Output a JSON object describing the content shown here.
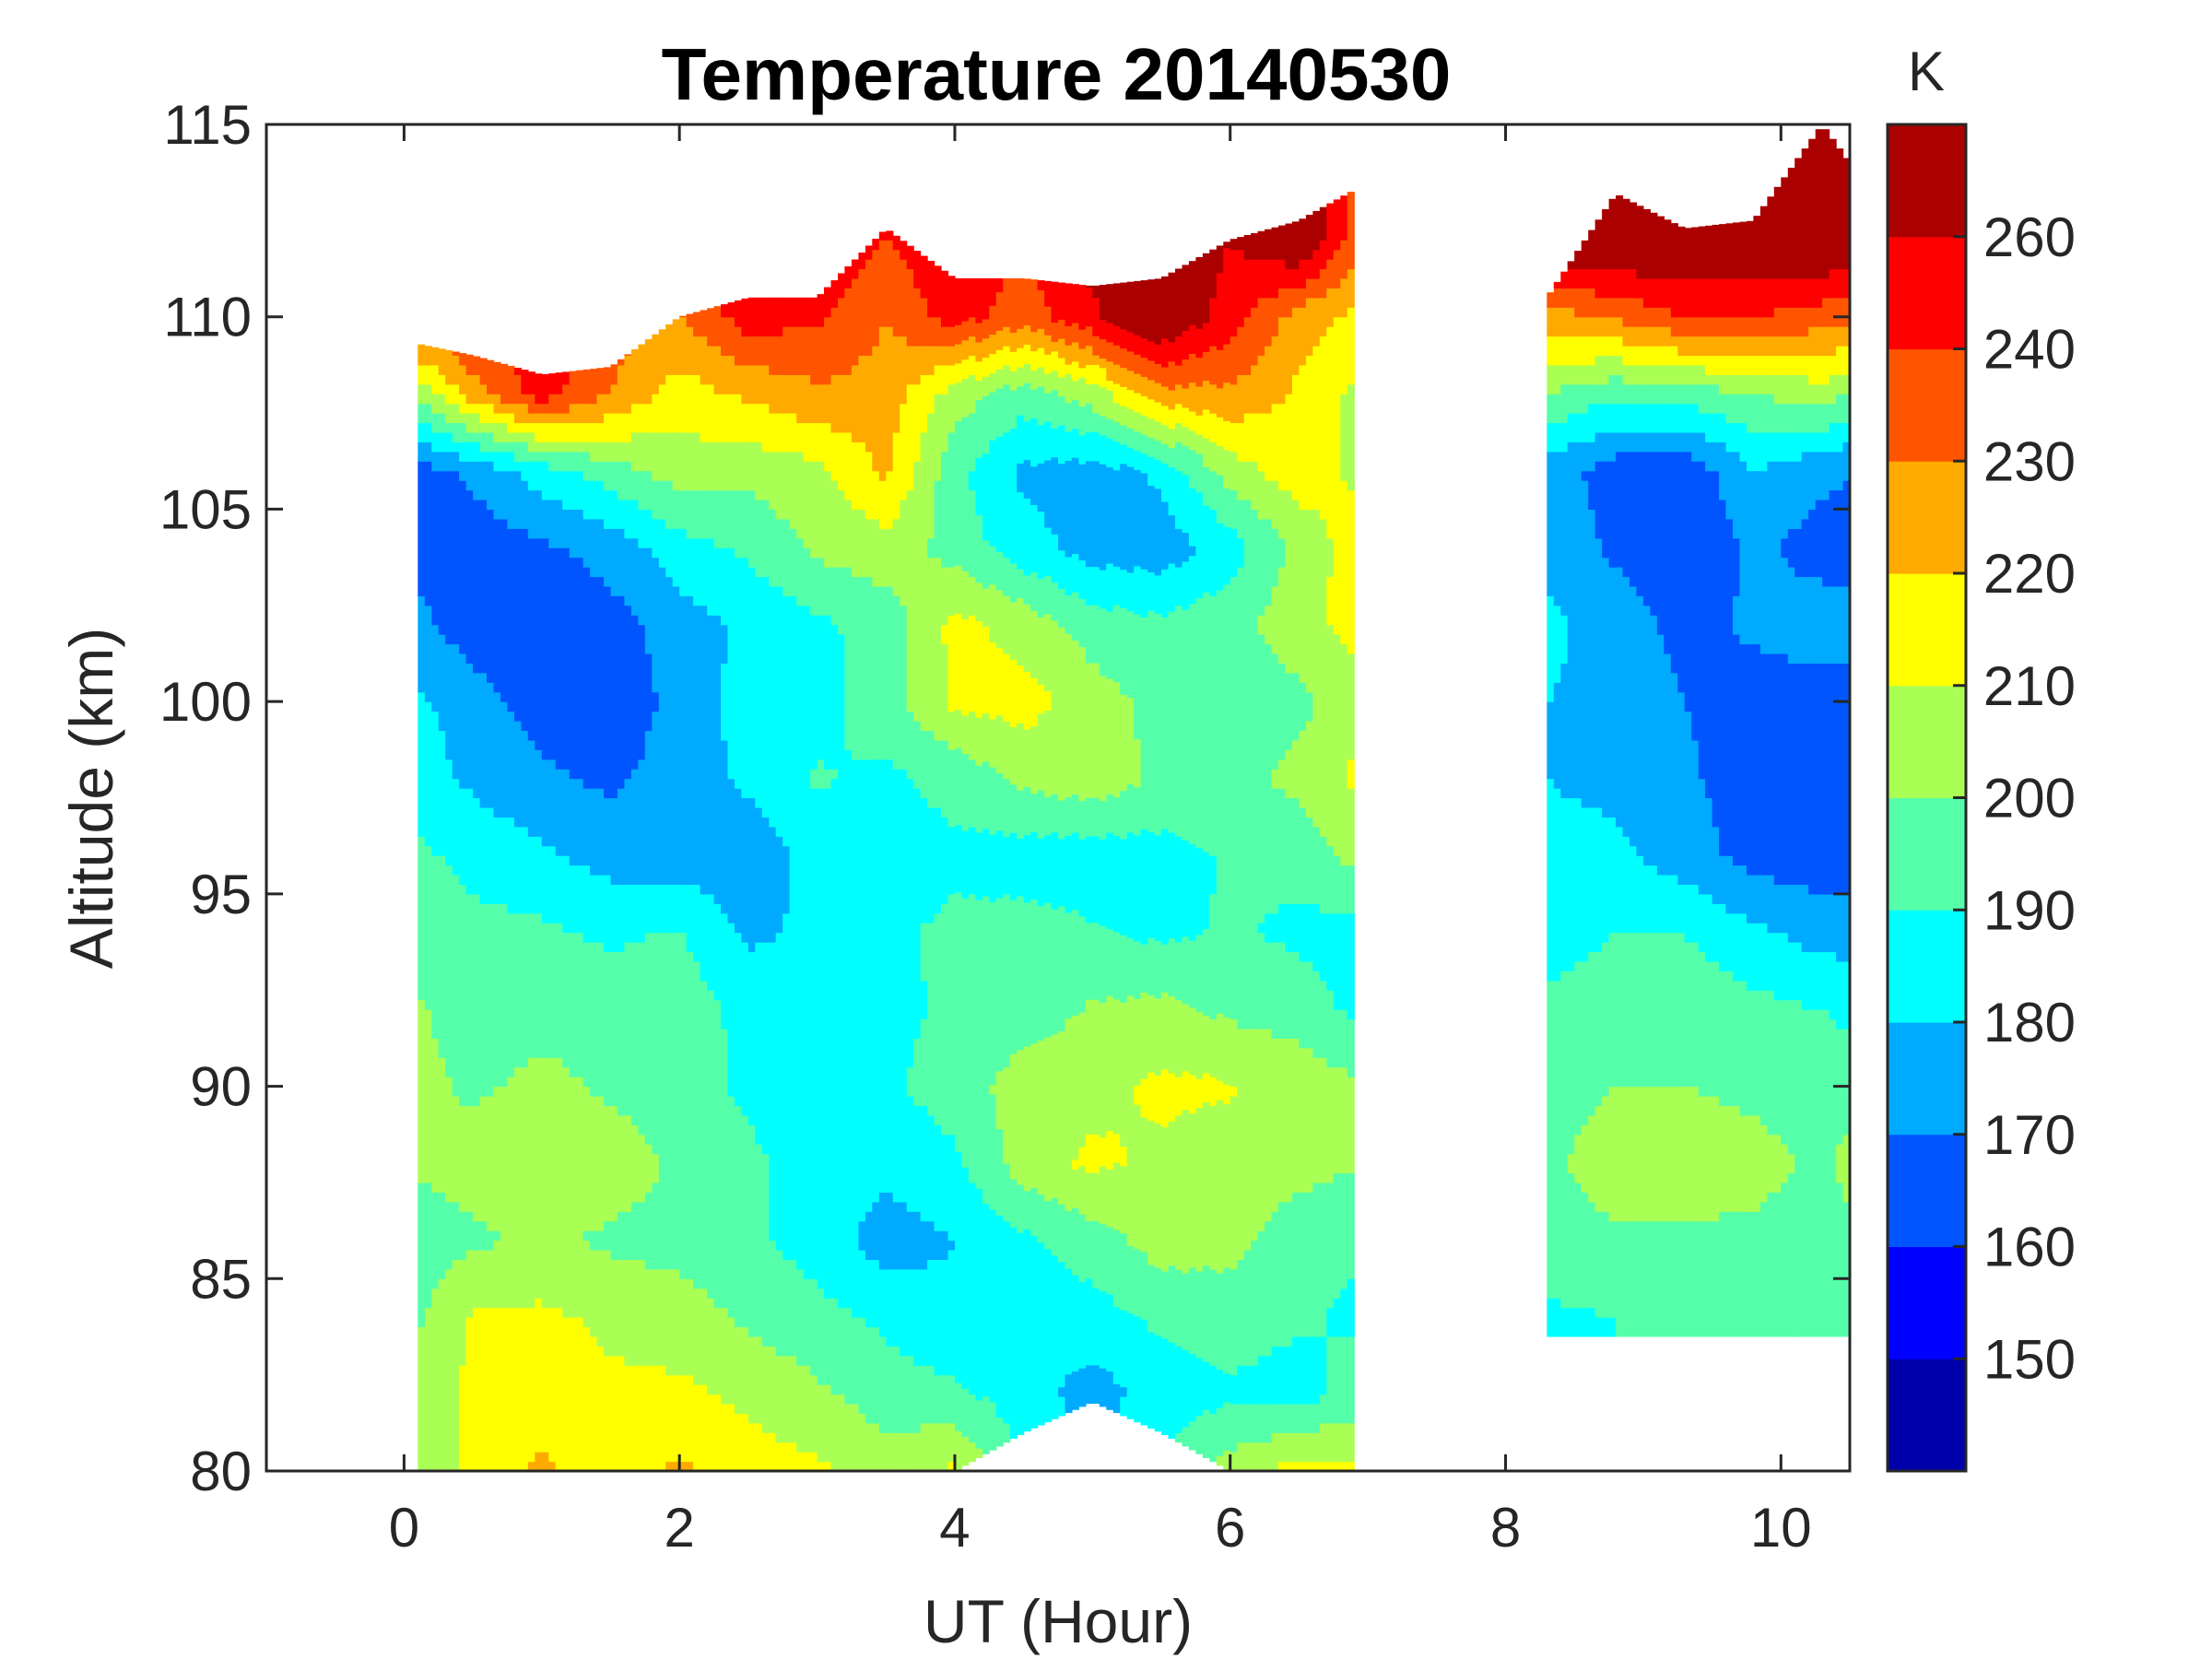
{
  "chart_data": {
    "type": "heatmap",
    "subtype": "filled-contour",
    "title": "Temperature 20140530",
    "xlabel": "UT (Hour)",
    "ylabel": "Altitude (km)",
    "xlim": [
      -1,
      10.5
    ],
    "ylim": [
      80,
      115
    ],
    "xticks": [
      "0",
      "2",
      "4",
      "6",
      "8",
      "10"
    ],
    "xtick_values": [
      0,
      2,
      4,
      6,
      8,
      10
    ],
    "yticks": [
      "80",
      "85",
      "90",
      "95",
      "100",
      "105",
      "110",
      "115"
    ],
    "ytick_values": [
      80,
      85,
      90,
      95,
      100,
      105,
      110,
      115
    ],
    "colorbar": {
      "label": "K",
      "levels": [
        140,
        150,
        160,
        170,
        180,
        190,
        200,
        210,
        220,
        230,
        240,
        250,
        260,
        270
      ],
      "colors": [
        "#0000aa",
        "#0000ff",
        "#0055ff",
        "#00aaff",
        "#00ffff",
        "#55ffaa",
        "#aaff55",
        "#ffff00",
        "#ffaa00",
        "#ff5500",
        "#ff0000",
        "#aa0000"
      ],
      "tick_labels_top_to_bottom": [
        "260",
        "240",
        "230",
        "220",
        "210",
        "200",
        "190",
        "180",
        "170",
        "160",
        "150"
      ]
    },
    "sections": [
      {
        "name": "segment-1",
        "hours": [
          0.1,
          0.5,
          1,
          1.5,
          2,
          2.5,
          3,
          3.5,
          4,
          4.5,
          5,
          5.5,
          6,
          6.5,
          6.9
        ],
        "altitudes": [
          80,
          82,
          84,
          86,
          88,
          90,
          92,
          94,
          96,
          98,
          100,
          102,
          104,
          106,
          108,
          110,
          112
        ],
        "top_km": [
          109.3,
          109,
          108.5,
          108.7,
          110,
          110.5,
          110.5,
          112.3,
          111,
          111,
          110.8,
          111,
          112,
          112.5,
          113.3
        ],
        "bottom_km": [
          80,
          80,
          80,
          80,
          80,
          80,
          80,
          80,
          80,
          81,
          81.8,
          81,
          80,
          80,
          80
        ],
        "values": [
          [
            205,
            212,
            222,
            215,
            222,
            215,
            212,
            205,
            212,
            190,
            185,
            190,
            205,
            215,
            212
          ],
          [
            205,
            212,
            215,
            212,
            212,
            208,
            202,
            195,
            192,
            185,
            175,
            185,
            188,
            185,
            195
          ],
          [
            198,
            211,
            212,
            208,
            205,
            198,
            193,
            188,
            182,
            185,
            186,
            192,
            195,
            192,
            188
          ],
          [
            195,
            198,
            202,
            198,
            196,
            192,
            186,
            175,
            180,
            188,
            195,
            205,
            203,
            195,
            192
          ],
          [
            201,
            205,
            208,
            206,
            198,
            192,
            186,
            183,
            188,
            205,
            212,
            208,
            205,
            203,
            201
          ],
          [
            203,
            198,
            203,
            198,
            195,
            188,
            185,
            188,
            195,
            205,
            207,
            212,
            211,
            206,
            202
          ],
          [
            201,
            195,
            196,
            197,
            195,
            187,
            183,
            186,
            193,
            195,
            201,
            203,
            198,
            195,
            188
          ],
          [
            197,
            193,
            192,
            188,
            191,
            178,
            182,
            188,
            192,
            193,
            191,
            188,
            191,
            188,
            185
          ],
          [
            192,
            187,
            182,
            176,
            175,
            174,
            184,
            186,
            188,
            186,
            185,
            186,
            191,
            193,
            204
          ],
          [
            185,
            178,
            172,
            168,
            175,
            182,
            191,
            188,
            193,
            202,
            206,
            198,
            196,
            203,
            212
          ],
          [
            182,
            174,
            166,
            162,
            174,
            184,
            186,
            196,
            212,
            214,
            205,
            196,
            193,
            197,
            206
          ],
          [
            172,
            165,
            162,
            166,
            175,
            182,
            188,
            194,
            213,
            206,
            195,
            192,
            197,
            206,
            214
          ],
          [
            168,
            164,
            168,
            174,
            186,
            192,
            202,
            206,
            196,
            184,
            176,
            174,
            185,
            203,
            215
          ],
          [
            166,
            172,
            185,
            195,
            205,
            203,
            207,
            222,
            193,
            178,
            176,
            182,
            205,
            216,
            208
          ],
          [
            203,
            225,
            245,
            230,
            215,
            222,
            228,
            226,
            205,
            195,
            205,
            226,
            228,
            218,
            208
          ],
          [
            240,
            245,
            245,
            235,
            230,
            245,
            242,
            230,
            245,
            235,
            248,
            262,
            245,
            225,
            218
          ],
          [
            245,
            245,
            245,
            240,
            240,
            250,
            250,
            240,
            250,
            240,
            255,
            262,
            250,
            262,
            235
          ]
        ]
      },
      {
        "name": "segment-2",
        "hours": [
          8.3,
          8.8,
          9.3,
          9.8,
          10.3,
          10.5
        ],
        "altitudes": [
          84,
          86,
          88,
          90,
          92,
          94,
          96,
          98,
          100,
          102,
          104,
          106,
          108,
          110,
          112,
          114
        ],
        "top_km": [
          110.5,
          113.2,
          112.3,
          112.5,
          115,
          114
        ],
        "bottom_km": [
          83.5,
          83.5,
          83.5,
          83.5,
          83.5,
          83.5
        ],
        "values": [
          [
            188,
            190,
            192,
            192,
            192,
            190
          ],
          [
            196,
            198,
            198,
            198,
            196,
            196
          ],
          [
            198,
            205,
            206,
            203,
            198,
            204
          ],
          [
            196,
            200,
            200,
            198,
            196,
            195
          ],
          [
            192,
            195,
            196,
            193,
            190,
            188
          ],
          [
            186,
            190,
            190,
            182,
            176,
            176
          ],
          [
            182,
            182,
            175,
            166,
            164,
            165
          ],
          [
            180,
            178,
            172,
            164,
            162,
            162
          ],
          [
            180,
            178,
            170,
            165,
            166,
            168
          ],
          [
            182,
            176,
            166,
            172,
            175,
            172
          ],
          [
            178,
            168,
            160,
            172,
            166,
            168
          ],
          [
            175,
            165,
            162,
            180,
            172,
            170
          ],
          [
            200,
            192,
            195,
            200,
            205,
            200
          ],
          [
            225,
            232,
            240,
            240,
            235,
            232
          ],
          [
            262,
            262,
            262,
            262,
            262,
            262
          ],
          [
            265,
            265,
            265,
            265,
            265,
            265
          ]
        ]
      }
    ]
  }
}
